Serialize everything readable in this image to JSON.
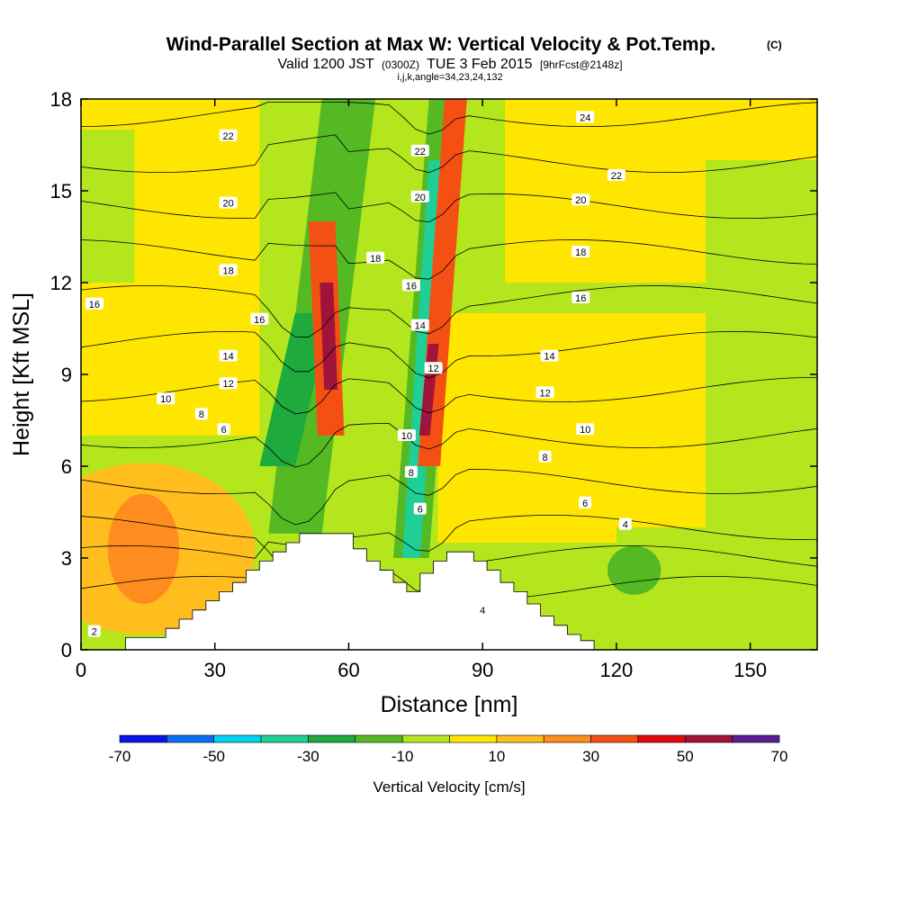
{
  "chart_data": {
    "type": "heatmap",
    "title": "Wind-Parallel Section at Max W: Vertical Velocity & Pot.Temp.",
    "title_mark": "(C)",
    "subtitle_main": "Valid 1200 JST",
    "subtitle_utc": "(0300Z)",
    "subtitle_date": "TUE 3 Feb 2015",
    "subtitle_fcst": "[9hrFcst@2148z]",
    "subtitle_index": "i,j,k,angle=34,23,24,132",
    "xlabel": "Distance [nm]",
    "ylabel": "Height [Kft MSL]",
    "xlim": [
      0,
      165
    ],
    "ylim": [
      0,
      18
    ],
    "x_ticks": [
      0,
      30,
      60,
      90,
      120,
      150
    ],
    "y_ticks": [
      0,
      3,
      6,
      9,
      12,
      15,
      18
    ],
    "colorbar": {
      "label": "Vertical Velocity [cm/s]",
      "tick_labels": [
        "-70",
        "-50",
        "-30",
        "-10",
        "10",
        "30",
        "50",
        "70"
      ],
      "bounds": [
        -70,
        70
      ],
      "colors": [
        "#0a14e6",
        "#0a6ef0",
        "#00d2f0",
        "#1ecf96",
        "#1eaa3c",
        "#55b923",
        "#b4e61e",
        "#ffe600",
        "#ffbe1e",
        "#ff8c1e",
        "#f55014",
        "#e10a0a",
        "#a0143c",
        "#5a1e91"
      ]
    },
    "terrain_kft": [
      [
        0,
        0
      ],
      [
        10,
        0
      ],
      [
        10,
        0.4
      ],
      [
        13,
        0.4
      ],
      [
        13,
        0.4
      ],
      [
        19,
        0.4
      ],
      [
        19,
        0.7
      ],
      [
        22,
        0.7
      ],
      [
        22,
        1.0
      ],
      [
        25,
        1.0
      ],
      [
        25,
        1.3
      ],
      [
        28,
        1.3
      ],
      [
        28,
        1.6
      ],
      [
        31,
        1.6
      ],
      [
        31,
        1.9
      ],
      [
        34,
        1.9
      ],
      [
        34,
        2.2
      ],
      [
        37,
        2.2
      ],
      [
        37,
        2.6
      ],
      [
        40,
        2.6
      ],
      [
        40,
        2.9
      ],
      [
        43,
        2.9
      ],
      [
        43,
        3.2
      ],
      [
        46,
        3.2
      ],
      [
        46,
        3.5
      ],
      [
        49,
        3.5
      ],
      [
        49,
        3.8
      ],
      [
        61,
        3.8
      ],
      [
        61,
        3.3
      ],
      [
        64,
        3.3
      ],
      [
        64,
        2.9
      ],
      [
        67,
        2.9
      ],
      [
        67,
        2.6
      ],
      [
        70,
        2.6
      ],
      [
        70,
        2.2
      ],
      [
        73,
        2.2
      ],
      [
        73,
        1.9
      ],
      [
        76,
        1.9
      ],
      [
        76,
        2.5
      ],
      [
        79,
        2.5
      ],
      [
        79,
        2.9
      ],
      [
        82,
        2.9
      ],
      [
        82,
        3.2
      ],
      [
        88,
        3.2
      ],
      [
        88,
        2.9
      ],
      [
        91,
        2.9
      ],
      [
        91,
        2.6
      ],
      [
        94,
        2.6
      ],
      [
        94,
        2.2
      ],
      [
        97,
        2.2
      ],
      [
        97,
        1.9
      ],
      [
        100,
        1.9
      ],
      [
        100,
        1.5
      ],
      [
        103,
        1.5
      ],
      [
        103,
        1.1
      ],
      [
        106,
        1.1
      ],
      [
        106,
        0.8
      ],
      [
        109,
        0.8
      ],
      [
        109,
        0.5
      ],
      [
        112,
        0.5
      ],
      [
        112,
        0.3
      ],
      [
        115,
        0.3
      ],
      [
        115,
        0
      ],
      [
        165,
        0
      ]
    ],
    "series": [
      {
        "name": "2",
        "label_at": [
          3,
          0.6
        ]
      },
      {
        "name": "4",
        "label_at": [
          90,
          1.3
        ]
      },
      {
        "name": "6",
        "label_at": [
          32,
          7.2
        ]
      },
      {
        "name": "8",
        "label_at": [
          27,
          7.7
        ]
      },
      {
        "name": "10",
        "label_at": [
          19,
          8.2
        ]
      },
      {
        "name": "12",
        "label_at": [
          33,
          8.7
        ]
      },
      {
        "name": "14",
        "label_at": [
          33,
          9.6
        ]
      },
      {
        "name": "16",
        "label_at": [
          40,
          10.8
        ]
      },
      {
        "name": "18",
        "label_at": [
          33,
          12.4
        ]
      },
      {
        "name": "20",
        "label_at": [
          33,
          14.6
        ]
      },
      {
        "name": "22",
        "label_at": [
          33,
          16.8
        ]
      },
      {
        "name": "24",
        "label_at": [
          113,
          17.4
        ]
      }
    ],
    "extra_labels": [
      {
        "name": "16",
        "at": [
          3,
          11.3
        ]
      },
      {
        "name": "4",
        "at": [
          122,
          4.1
        ]
      },
      {
        "name": "6",
        "at": [
          113,
          4.8
        ]
      },
      {
        "name": "8",
        "at": [
          104,
          6.3
        ]
      },
      {
        "name": "10",
        "at": [
          113,
          7.2
        ]
      },
      {
        "name": "12",
        "at": [
          104,
          8.4
        ]
      },
      {
        "name": "14",
        "at": [
          105,
          9.6
        ]
      },
      {
        "name": "16",
        "at": [
          112,
          11.5
        ]
      },
      {
        "name": "18",
        "at": [
          112,
          13.0
        ]
      },
      {
        "name": "20",
        "at": [
          112,
          14.7
        ]
      },
      {
        "name": "22",
        "at": [
          120,
          15.5
        ]
      },
      {
        "name": "10",
        "at": [
          73,
          7.0
        ]
      },
      {
        "name": "8",
        "at": [
          74,
          5.8
        ]
      },
      {
        "name": "6",
        "at": [
          76,
          4.6
        ]
      },
      {
        "name": "12",
        "at": [
          79,
          9.2
        ]
      },
      {
        "name": "14",
        "at": [
          76,
          10.6
        ]
      },
      {
        "name": "16",
        "at": [
          74,
          11.9
        ]
      },
      {
        "name": "18",
        "at": [
          66,
          12.8
        ]
      },
      {
        "name": "20",
        "at": [
          76,
          14.8
        ]
      },
      {
        "name": "22",
        "at": [
          76,
          16.3
        ]
      }
    ],
    "velocity_features": [
      {
        "kind": "updraft",
        "x": [
          53,
          58
        ],
        "y": [
          7,
          14
        ],
        "value": 50
      },
      {
        "kind": "updraft",
        "x": [
          76,
          80
        ],
        "y": [
          7,
          18
        ],
        "value": 50
      },
      {
        "kind": "downdraft",
        "x": [
          43,
          54
        ],
        "y": [
          3.5,
          12
        ],
        "value": -30
      },
      {
        "kind": "downdraft",
        "x": [
          71,
          76
        ],
        "y": [
          2.8,
          16
        ],
        "value": -50
      },
      {
        "kind": "updraft",
        "x": [
          7,
          20
        ],
        "y": [
          0.5,
          6
        ],
        "value": 30
      }
    ]
  }
}
